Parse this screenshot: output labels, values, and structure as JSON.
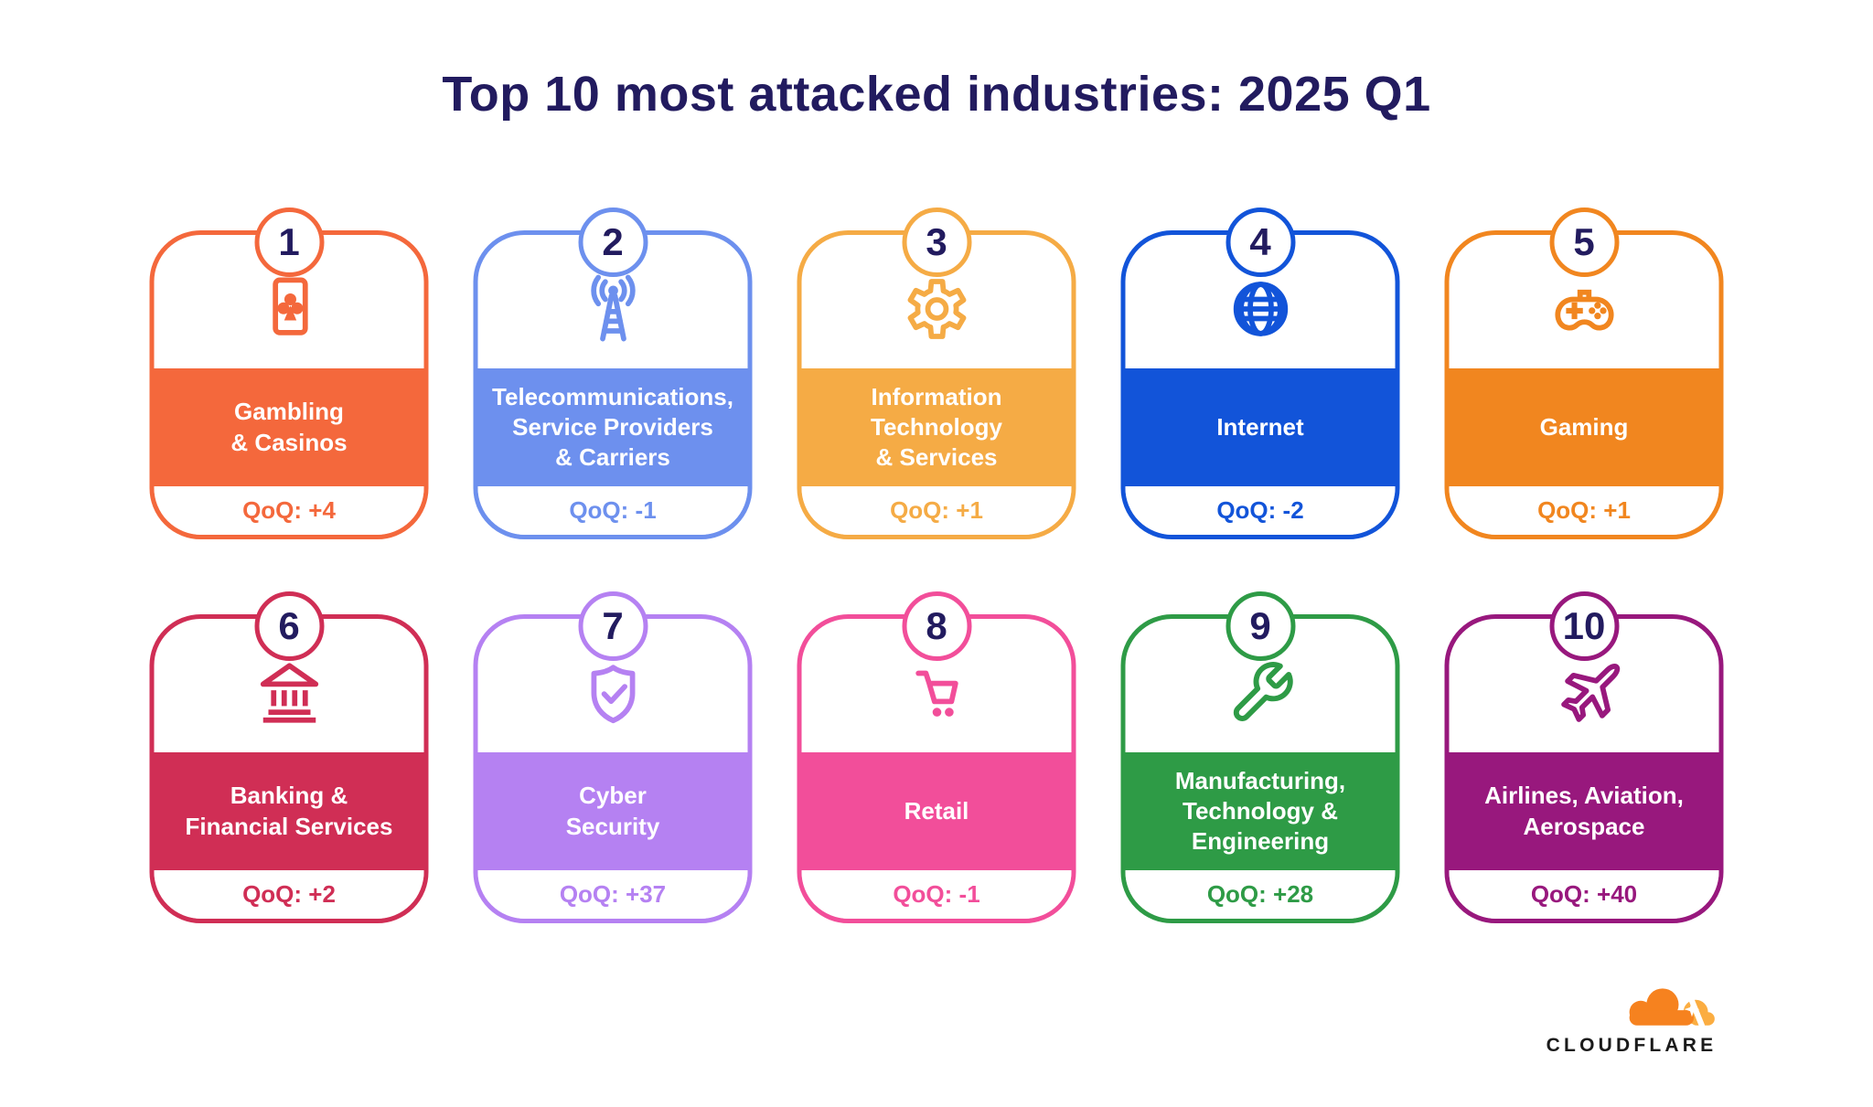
{
  "title": "Top 10 most attacked industries: 2025 Q1",
  "theme": {
    "background": "#FFFFFF",
    "title_color": "#221B5F",
    "rank_color": "#221B5F"
  },
  "brand": {
    "wordmark": "CLOUDFLARE",
    "cloud_primary": "#F6821F",
    "cloud_secondary": "#FBAD41",
    "text_color": "#1A1A1A"
  },
  "cards": [
    {
      "rank": "1",
      "icon": "playing-card",
      "color": "#F4683C",
      "label_lines": [
        "Gambling",
        "& Casinos"
      ],
      "qoq": "QoQ: +4"
    },
    {
      "rank": "2",
      "icon": "radio-tower",
      "color": "#6D90EE",
      "label_lines": [
        "Telecommunications,",
        "Service Providers",
        "& Carriers"
      ],
      "qoq": "QoQ: -1"
    },
    {
      "rank": "3",
      "icon": "gear",
      "color": "#F5AB45",
      "label_lines": [
        "Information",
        "Technology",
        "& Services"
      ],
      "qoq": "QoQ: +1"
    },
    {
      "rank": "4",
      "icon": "globe",
      "color": "#1254D9",
      "label_lines": [
        "Internet"
      ],
      "qoq": "QoQ: -2"
    },
    {
      "rank": "5",
      "icon": "gamepad",
      "color": "#F1861F",
      "label_lines": [
        "Gaming"
      ],
      "qoq": "QoQ: +1"
    },
    {
      "rank": "6",
      "icon": "bank",
      "color": "#D02E55",
      "label_lines": [
        "Banking &",
        "Financial Services"
      ],
      "qoq": "QoQ: +2"
    },
    {
      "rank": "7",
      "icon": "shield-check",
      "color": "#B581F2",
      "label_lines": [
        "Cyber",
        "Security"
      ],
      "qoq": "QoQ: +37"
    },
    {
      "rank": "8",
      "icon": "shopping-cart",
      "color": "#F24E9A",
      "label_lines": [
        "Retail"
      ],
      "qoq": "QoQ: -1"
    },
    {
      "rank": "9",
      "icon": "wrench",
      "color": "#2E9B46",
      "label_lines": [
        "Manufacturing,",
        "Technology &",
        "Engineering"
      ],
      "qoq": "QoQ: +28"
    },
    {
      "rank": "10",
      "icon": "airplane",
      "color": "#98187D",
      "label_lines": [
        "Airlines, Aviation,",
        "Aerospace"
      ],
      "qoq": "QoQ: +40"
    }
  ],
  "chart_data": {
    "type": "table",
    "title": "Top 10 most attacked industries: 2025 Q1",
    "columns": [
      "rank",
      "industry",
      "qoq_change"
    ],
    "rows": [
      [
        1,
        "Gambling & Casinos",
        "+4"
      ],
      [
        2,
        "Telecommunications, Service Providers & Carriers",
        "-1"
      ],
      [
        3,
        "Information Technology & Services",
        "+1"
      ],
      [
        4,
        "Internet",
        "-2"
      ],
      [
        5,
        "Gaming",
        "+1"
      ],
      [
        6,
        "Banking & Financial Services",
        "+2"
      ],
      [
        7,
        "Cyber Security",
        "+37"
      ],
      [
        8,
        "Retail",
        "-1"
      ],
      [
        9,
        "Manufacturing, Technology & Engineering",
        "+28"
      ],
      [
        10,
        "Airlines, Aviation, Aerospace",
        "+40"
      ]
    ],
    "source_brand": "CLOUDFLARE"
  }
}
